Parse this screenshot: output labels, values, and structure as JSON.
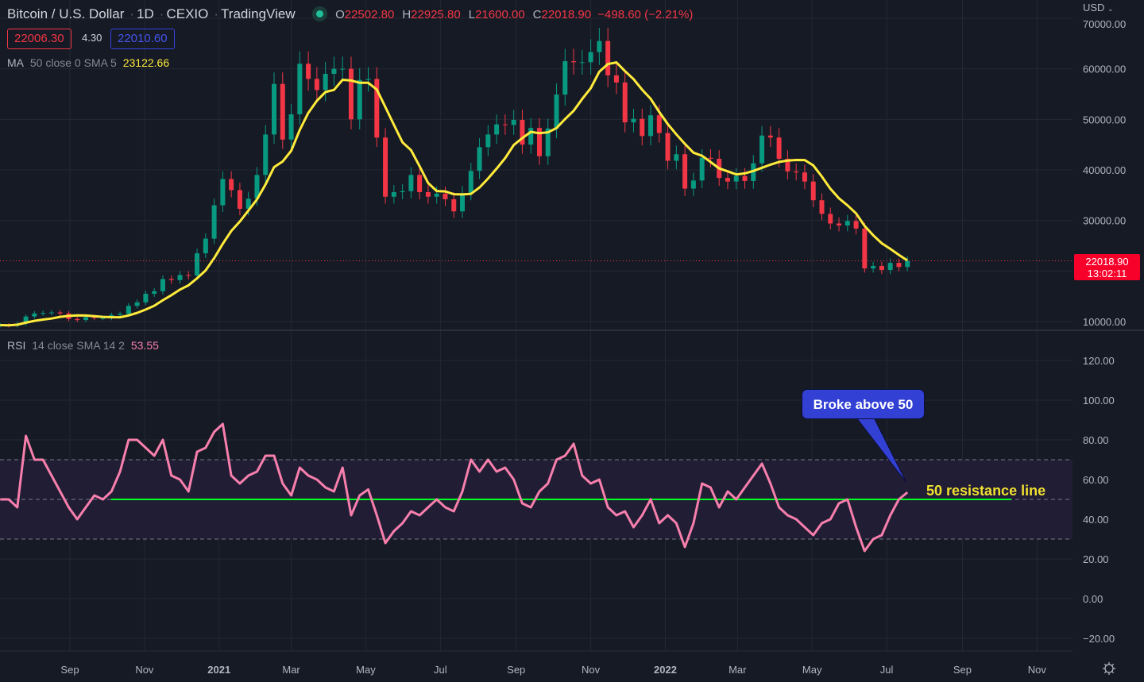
{
  "header": {
    "symbol": "Bitcoin / U.S. Dollar",
    "interval": "1D",
    "exchange": "CEXIO",
    "source": "TradingView",
    "o_label": "O",
    "open": "22502.80",
    "h_label": "H",
    "high": "22925.80",
    "l_label": "L",
    "low": "21600.00",
    "c_label": "C",
    "close": "22018.90",
    "change": "−498.60 (−2.21%)",
    "bid": "22006.30",
    "spread": "4.30",
    "ask": "22010.60",
    "currency": "USD"
  },
  "ma_legend": {
    "label": "MA",
    "params": "50 close 0 SMA 5",
    "value": "23122.66"
  },
  "rsi_legend": {
    "label": "RSI",
    "params": "14 close SMA 14 2",
    "value": "53.55"
  },
  "last_price": {
    "price": "22018.90",
    "countdown": "13:02:11"
  },
  "annotations": {
    "callout": "Broke above 50",
    "line_label": "50 resistance line"
  },
  "colors": {
    "up": "#089981",
    "down": "#f23645",
    "ma": "#ffeb3b",
    "rsi": "#f77fac",
    "resistance": "#00ff22",
    "callout": "#3340d4"
  },
  "chart_data": [
    {
      "type": "candlestick",
      "title": "Bitcoin / U.S. Dollar 1D CEXIO",
      "x_start": "2020-07-06",
      "x_step_days": 7,
      "closes": [
        9300,
        9200,
        9600,
        11000,
        11600,
        11700,
        11800,
        11600,
        10500,
        10300,
        10900,
        10700,
        10700,
        11300,
        11500,
        13100,
        13800,
        15500,
        16000,
        18400,
        18200,
        19200,
        19100,
        23500,
        26400,
        33000,
        38200,
        36000,
        32300,
        34300,
        39000,
        47000,
        57000,
        46000,
        51000,
        61000,
        58000,
        55800,
        59000,
        60000,
        60000,
        50000,
        57800,
        58000,
        46400,
        34700,
        35600,
        35800,
        39000,
        35600,
        34700,
        35300,
        34200,
        31800,
        35400,
        39800,
        44500,
        47000,
        49000,
        48900,
        49900,
        45000,
        48300,
        42700,
        48200,
        54900,
        61500,
        61300,
        61300,
        63300,
        65500,
        58700,
        57300,
        49400,
        50100,
        46700,
        50800,
        47300,
        41800,
        43100,
        36300,
        37900,
        42400,
        42200,
        38400,
        37700,
        38800,
        37800,
        41300,
        46800,
        46400,
        42200,
        39700,
        39500,
        37700,
        34000,
        31300,
        29400,
        29000,
        29900,
        28400,
        20500,
        21000,
        20200,
        21600,
        20800,
        22018.9
      ],
      "ma_period_weeks": 7,
      "y_ticks": [
        "10000.00",
        "20000.00",
        "30000.00",
        "40000.00",
        "50000.00",
        "60000.00",
        "70000.00"
      ],
      "ylim": [
        8000,
        72000
      ],
      "current_price": 22018.9
    },
    {
      "type": "line",
      "title": "RSI 14 close SMA 14 2",
      "x_start": "2020-07-06",
      "x_step_days": 7,
      "values": [
        50,
        50,
        46,
        82,
        70,
        70,
        62,
        54,
        46,
        40,
        46,
        52,
        50,
        54,
        64,
        80,
        80,
        76,
        72,
        80,
        62,
        60,
        54,
        74,
        76,
        84,
        88,
        62,
        58,
        62,
        64,
        72,
        72,
        58,
        52,
        66,
        62,
        60,
        56,
        54,
        66,
        42,
        52,
        55,
        42,
        28,
        34,
        38,
        44,
        42,
        46,
        50,
        46,
        44,
        54,
        70,
        64,
        70,
        64,
        66,
        60,
        48,
        46,
        54,
        58,
        70,
        72,
        78,
        62,
        58,
        60,
        46,
        42,
        44,
        36,
        42,
        50,
        38,
        42,
        38,
        26,
        38,
        58,
        56,
        46,
        54,
        50,
        56,
        62,
        68,
        58,
        46,
        42,
        40,
        36,
        32,
        38,
        40,
        48,
        50,
        36,
        24,
        30,
        32,
        42,
        50,
        53.55
      ],
      "y_ticks": [
        "−20.00",
        "0.00",
        "20.00",
        "40.00",
        "60.00",
        "80.00",
        "100.00",
        "120.00"
      ],
      "ylim": [
        -25,
        130
      ],
      "band": [
        30,
        70
      ],
      "resistance_level": 50
    }
  ],
  "time_axis": [
    "Sep",
    "Nov",
    "2021",
    "Mar",
    "May",
    "Jul",
    "Sep",
    "Nov",
    "2022",
    "Mar",
    "May",
    "Jul",
    "Sep",
    "Nov"
  ]
}
